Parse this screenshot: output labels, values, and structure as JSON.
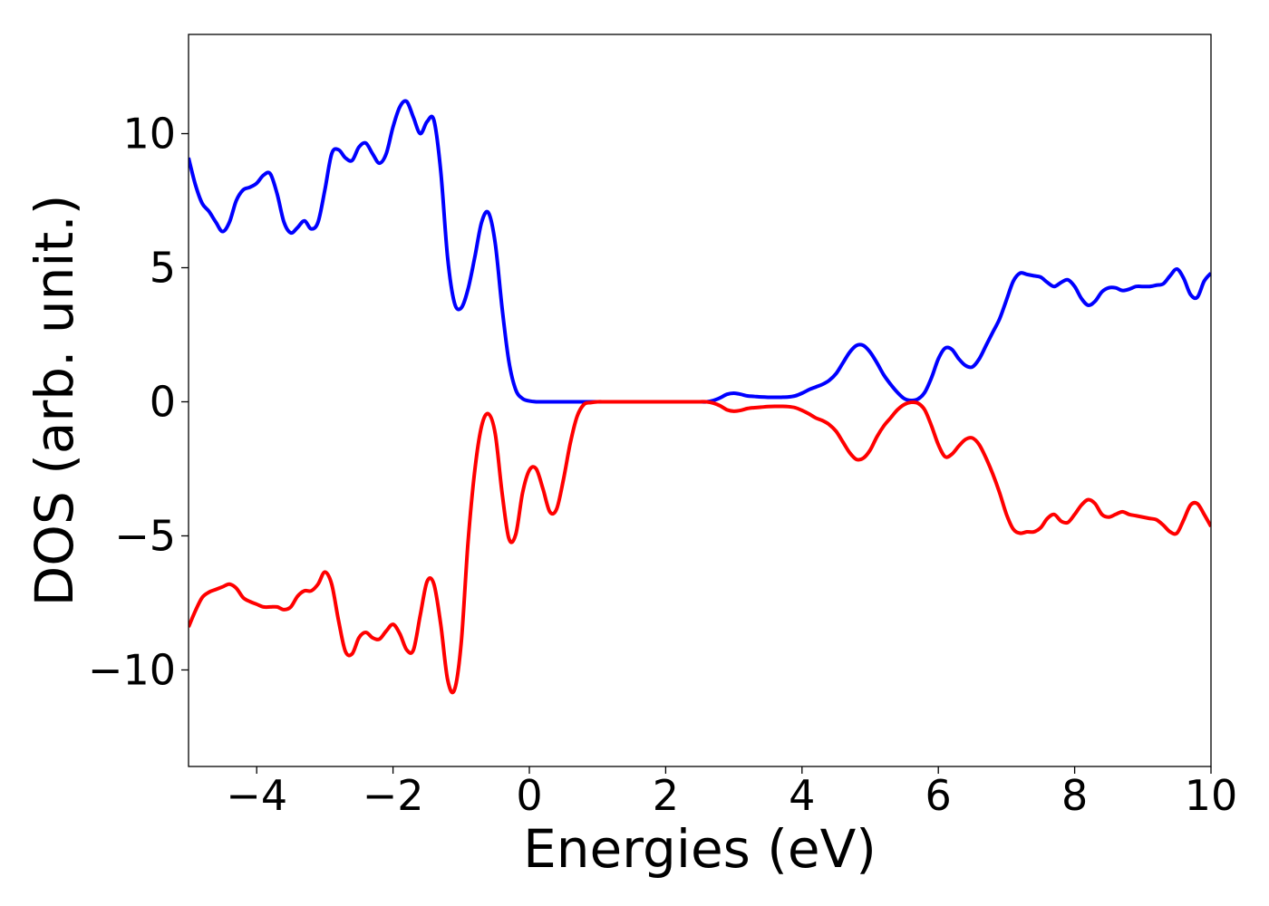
{
  "chart_data": {
    "type": "line",
    "xlabel": "Energies (eV)",
    "ylabel": "DOS (arb. unit.)",
    "xlim": [
      -5,
      10
    ],
    "ylim": [
      -13.6,
      13.7
    ],
    "xticks": [
      {
        "value": -4,
        "label": "−4"
      },
      {
        "value": -2,
        "label": "−2"
      },
      0,
      2,
      4,
      6,
      8,
      10
    ],
    "yticks": [
      {
        "value": -10,
        "label": "−10"
      },
      {
        "value": -5,
        "label": "−5"
      },
      0,
      5,
      10
    ],
    "grid": false,
    "x": [
      -5.0,
      -4.9,
      -4.8,
      -4.7,
      -4.6,
      -4.5,
      -4.4,
      -4.3,
      -4.2,
      -4.1,
      -4.0,
      -3.9,
      -3.8,
      -3.7,
      -3.6,
      -3.5,
      -3.4,
      -3.3,
      -3.2,
      -3.1,
      -3.0,
      -2.9,
      -2.8,
      -2.7,
      -2.6,
      -2.5,
      -2.4,
      -2.3,
      -2.2,
      -2.1,
      -2.0,
      -1.9,
      -1.8,
      -1.7,
      -1.6,
      -1.5,
      -1.4,
      -1.3,
      -1.2,
      -1.1,
      -1.0,
      -0.9,
      -0.8,
      -0.7,
      -0.6,
      -0.5,
      -0.4,
      -0.3,
      -0.2,
      -0.1,
      0.0,
      0.1,
      0.2,
      0.3,
      0.4,
      0.5,
      0.6,
      0.7,
      0.8,
      0.9,
      1.0,
      1.1,
      1.2,
      1.3,
      1.4,
      1.5,
      1.6,
      1.7,
      1.8,
      1.9,
      2.0,
      2.1,
      2.2,
      2.3,
      2.4,
      2.5,
      2.6,
      2.7,
      2.8,
      2.9,
      3.0,
      3.1,
      3.2,
      3.3,
      3.4,
      3.5,
      3.6,
      3.7,
      3.8,
      3.9,
      4.0,
      4.1,
      4.2,
      4.3,
      4.4,
      4.5,
      4.6,
      4.7,
      4.8,
      4.9,
      5.0,
      5.1,
      5.2,
      5.3,
      5.4,
      5.5,
      5.6,
      5.7,
      5.8,
      5.9,
      6.0,
      6.1,
      6.2,
      6.3,
      6.4,
      6.5,
      6.6,
      6.7,
      6.8,
      6.9,
      7.0,
      7.1,
      7.2,
      7.3,
      7.4,
      7.5,
      7.6,
      7.7,
      7.8,
      7.9,
      8.0,
      8.1,
      8.2,
      8.3,
      8.4,
      8.5,
      8.6,
      8.7,
      8.8,
      8.9,
      9.0,
      9.1,
      9.2,
      9.3,
      9.4,
      9.5,
      9.6,
      9.7,
      9.8,
      9.9,
      10.0
    ],
    "series": [
      {
        "color": "#0000ff",
        "values": [
          9.1,
          8.1,
          7.4,
          7.1,
          6.7,
          6.35,
          6.7,
          7.5,
          7.9,
          8.0,
          8.15,
          8.45,
          8.5,
          7.75,
          6.7,
          6.3,
          6.5,
          6.75,
          6.45,
          6.7,
          7.9,
          9.25,
          9.4,
          9.1,
          9.0,
          9.5,
          9.65,
          9.25,
          8.9,
          9.25,
          10.25,
          11.0,
          11.2,
          10.6,
          10.0,
          10.45,
          10.5,
          8.6,
          5.4,
          3.7,
          3.5,
          4.2,
          5.4,
          6.7,
          7.05,
          5.9,
          3.5,
          1.5,
          0.45,
          0.12,
          0.03,
          0,
          0,
          0,
          0,
          0,
          0,
          0,
          0,
          0,
          0,
          0,
          0,
          0,
          0,
          0,
          0,
          0,
          0,
          0,
          0,
          0,
          0,
          0,
          0,
          0,
          0,
          0.05,
          0.15,
          0.28,
          0.32,
          0.28,
          0.22,
          0.2,
          0.18,
          0.17,
          0.17,
          0.17,
          0.18,
          0.22,
          0.32,
          0.45,
          0.55,
          0.65,
          0.8,
          1.05,
          1.45,
          1.85,
          2.1,
          2.1,
          1.85,
          1.45,
          1.0,
          0.65,
          0.35,
          0.12,
          0.05,
          0.1,
          0.35,
          0.9,
          1.6,
          2.0,
          1.95,
          1.6,
          1.35,
          1.3,
          1.6,
          2.1,
          2.6,
          3.1,
          3.8,
          4.5,
          4.8,
          4.75,
          4.7,
          4.65,
          4.45,
          4.3,
          4.45,
          4.55,
          4.3,
          3.85,
          3.6,
          3.75,
          4.1,
          4.25,
          4.25,
          4.15,
          4.2,
          4.3,
          4.3,
          4.3,
          4.35,
          4.4,
          4.7,
          4.95,
          4.6,
          4.0,
          3.9,
          4.5,
          4.8
        ]
      },
      {
        "color": "#ff0000",
        "values": [
          -8.4,
          -7.8,
          -7.3,
          -7.1,
          -7.0,
          -6.9,
          -6.8,
          -6.95,
          -7.3,
          -7.45,
          -7.55,
          -7.65,
          -7.65,
          -7.65,
          -7.75,
          -7.65,
          -7.25,
          -7.05,
          -7.05,
          -6.8,
          -6.35,
          -6.8,
          -8.15,
          -9.3,
          -9.4,
          -8.8,
          -8.6,
          -8.8,
          -8.85,
          -8.55,
          -8.3,
          -8.65,
          -9.25,
          -9.25,
          -7.95,
          -6.7,
          -6.8,
          -8.3,
          -10.35,
          -10.75,
          -9.0,
          -5.25,
          -2.55,
          -0.9,
          -0.45,
          -1.2,
          -3.4,
          -5.1,
          -4.95,
          -3.4,
          -2.55,
          -2.5,
          -3.25,
          -4.1,
          -4.0,
          -2.9,
          -1.55,
          -0.55,
          -0.1,
          -0.03,
          0,
          0,
          0,
          0,
          0,
          0,
          0,
          0,
          0,
          0,
          0,
          0,
          0,
          0,
          0,
          0,
          0,
          -0.05,
          -0.15,
          -0.3,
          -0.35,
          -0.32,
          -0.25,
          -0.22,
          -0.2,
          -0.18,
          -0.17,
          -0.17,
          -0.18,
          -0.22,
          -0.32,
          -0.45,
          -0.6,
          -0.7,
          -0.85,
          -1.1,
          -1.5,
          -1.9,
          -2.15,
          -2.1,
          -1.8,
          -1.3,
          -0.9,
          -0.6,
          -0.3,
          -0.1,
          -0.02,
          -0.05,
          -0.3,
          -0.9,
          -1.6,
          -2.05,
          -1.95,
          -1.65,
          -1.4,
          -1.35,
          -1.6,
          -2.1,
          -2.7,
          -3.4,
          -4.2,
          -4.75,
          -4.9,
          -4.85,
          -4.85,
          -4.7,
          -4.35,
          -4.2,
          -4.45,
          -4.5,
          -4.2,
          -3.85,
          -3.65,
          -3.8,
          -4.2,
          -4.3,
          -4.2,
          -4.1,
          -4.2,
          -4.25,
          -4.3,
          -4.35,
          -4.4,
          -4.6,
          -4.85,
          -4.9,
          -4.4,
          -3.85,
          -3.8,
          -4.2,
          -4.65
        ]
      }
    ]
  }
}
